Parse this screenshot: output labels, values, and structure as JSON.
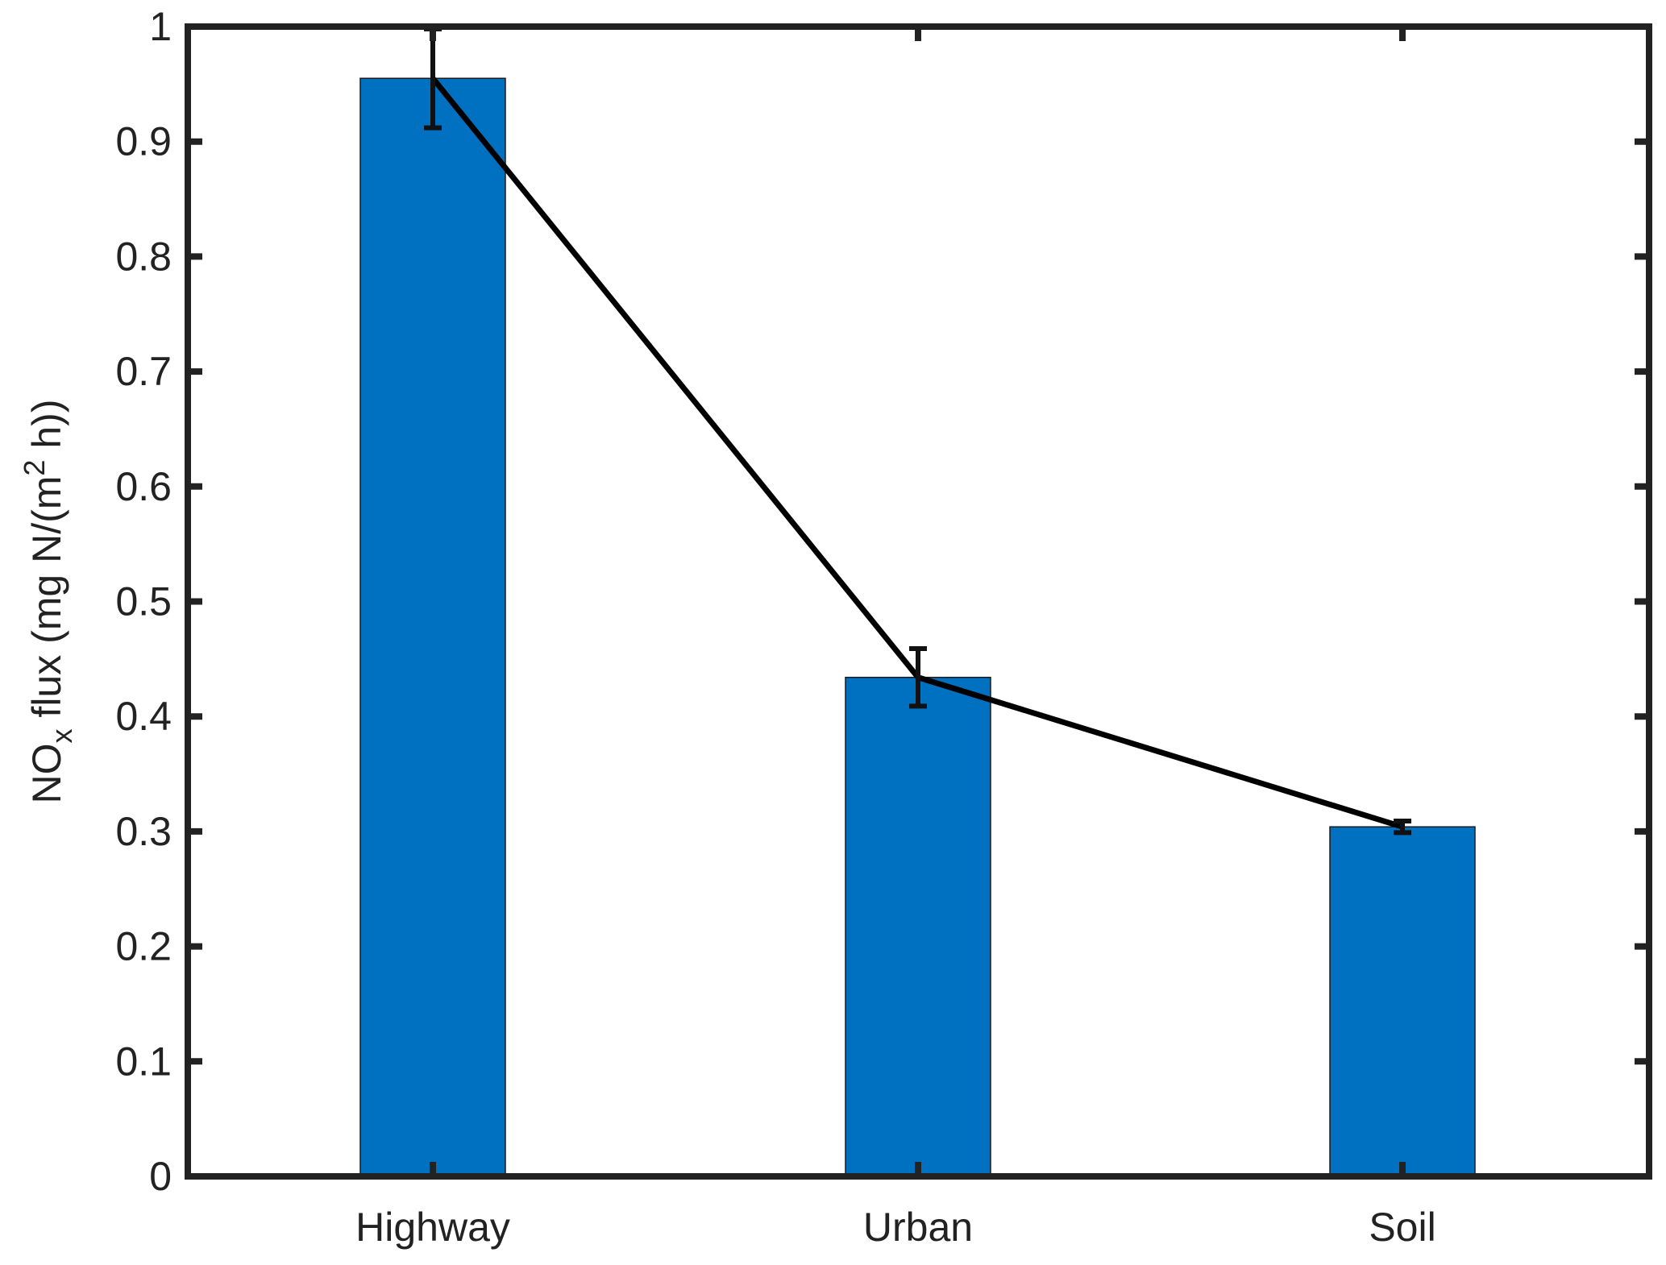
{
  "chart_data": {
    "type": "bar",
    "categories": [
      "Highway",
      "Urban",
      "Soil"
    ],
    "values": [
      0.955,
      0.434,
      0.304
    ],
    "errors": [
      0.043,
      0.025,
      0.005
    ],
    "line_overlay": true,
    "ylabel_parts": {
      "main": "NO",
      "subscript": "x",
      "mid": " flux (mg N/(m",
      "superscript": "2",
      "end": " h))"
    },
    "ylim": [
      0,
      1
    ],
    "yticks": [
      "0",
      "0.1",
      "0.2",
      "0.3",
      "0.4",
      "0.5",
      "0.6",
      "0.7",
      "0.8",
      "0.9",
      "1"
    ],
    "grid": false,
    "bar_color": "#0070C0",
    "line_color": "#000000"
  }
}
